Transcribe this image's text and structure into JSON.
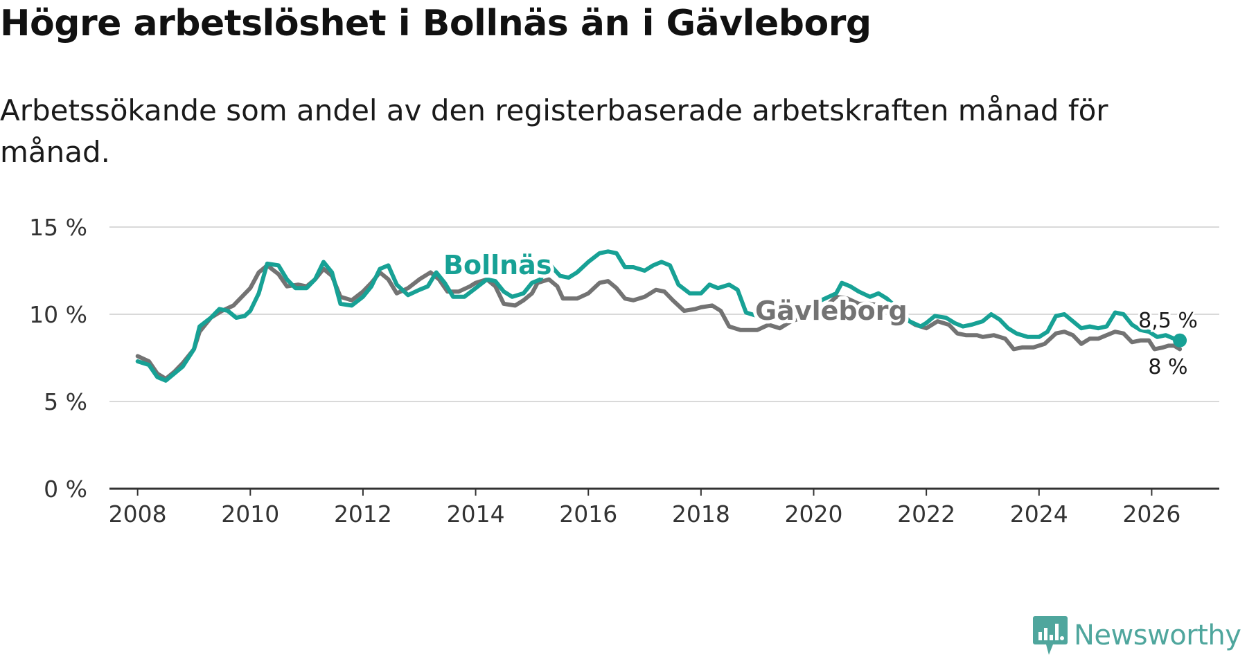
{
  "header": {
    "title": "Högre arbetslöshet i Bollnäs än i Gävleborg",
    "subtitle": "Arbetssökande som andel av den registerbaserade arbetskraften månad för månad."
  },
  "logo": {
    "text": "Newsworthy",
    "icon": "newsworthy-logo-icon",
    "color": "#4fa69d"
  },
  "chart_data": {
    "type": "line",
    "title": "Högre arbetslöshet i Bollnäs än i Gävleborg",
    "subtitle": "Arbetssökande som andel av den registerbaserade arbetskraften månad för månad.",
    "xlabel": "",
    "ylabel": "",
    "xlim": [
      2007.5,
      2027.2
    ],
    "ylim": [
      0,
      15
    ],
    "x_ticks": [
      2008,
      2010,
      2012,
      2014,
      2016,
      2018,
      2020,
      2022,
      2024,
      2026
    ],
    "x_tick_labels": [
      "2008",
      "2010",
      "2012",
      "2014",
      "2016",
      "2018",
      "2020",
      "2022",
      "2024",
      "2026"
    ],
    "y_ticks": [
      0,
      5,
      10,
      15
    ],
    "y_tick_labels": [
      "0 %",
      "5 %",
      "10 %",
      "15 %"
    ],
    "grid": true,
    "series": [
      {
        "name": "Gävleborg",
        "label": "Gävleborg",
        "color": "#737373",
        "end_label": "8 %",
        "points": [
          [
            2008.0,
            7.6
          ],
          [
            2008.2,
            7.3
          ],
          [
            2008.35,
            6.6
          ],
          [
            2008.5,
            6.3
          ],
          [
            2008.65,
            6.7
          ],
          [
            2008.8,
            7.2
          ],
          [
            2009.0,
            8.0
          ],
          [
            2009.1,
            9.0
          ],
          [
            2009.3,
            9.8
          ],
          [
            2009.5,
            10.2
          ],
          [
            2009.7,
            10.5
          ],
          [
            2009.85,
            11.0
          ],
          [
            2010.0,
            11.5
          ],
          [
            2010.15,
            12.4
          ],
          [
            2010.3,
            12.8
          ],
          [
            2010.5,
            12.3
          ],
          [
            2010.65,
            11.6
          ],
          [
            2010.85,
            11.7
          ],
          [
            2011.0,
            11.6
          ],
          [
            2011.15,
            12.0
          ],
          [
            2011.3,
            12.6
          ],
          [
            2011.45,
            12.2
          ],
          [
            2011.6,
            11.0
          ],
          [
            2011.8,
            10.8
          ],
          [
            2012.0,
            11.3
          ],
          [
            2012.15,
            11.8
          ],
          [
            2012.3,
            12.4
          ],
          [
            2012.45,
            12.0
          ],
          [
            2012.6,
            11.2
          ],
          [
            2012.8,
            11.5
          ],
          [
            2013.0,
            12.0
          ],
          [
            2013.2,
            12.4
          ],
          [
            2013.35,
            12.0
          ],
          [
            2013.5,
            11.3
          ],
          [
            2013.7,
            11.3
          ],
          [
            2013.9,
            11.6
          ],
          [
            2014.0,
            11.8
          ],
          [
            2014.2,
            12.0
          ],
          [
            2014.35,
            11.6
          ],
          [
            2014.5,
            10.6
          ],
          [
            2014.7,
            10.5
          ],
          [
            2014.85,
            10.8
          ],
          [
            2015.0,
            11.2
          ],
          [
            2015.1,
            11.8
          ],
          [
            2015.3,
            12.0
          ],
          [
            2015.45,
            11.6
          ],
          [
            2015.55,
            10.9
          ],
          [
            2015.8,
            10.9
          ],
          [
            2016.0,
            11.2
          ],
          [
            2016.2,
            11.8
          ],
          [
            2016.35,
            11.9
          ],
          [
            2016.5,
            11.5
          ],
          [
            2016.65,
            10.9
          ],
          [
            2016.8,
            10.8
          ],
          [
            2017.0,
            11.0
          ],
          [
            2017.2,
            11.4
          ],
          [
            2017.35,
            11.3
          ],
          [
            2017.5,
            10.8
          ],
          [
            2017.7,
            10.2
          ],
          [
            2017.9,
            10.3
          ],
          [
            2018.0,
            10.4
          ],
          [
            2018.2,
            10.5
          ],
          [
            2018.35,
            10.2
          ],
          [
            2018.5,
            9.3
          ],
          [
            2018.7,
            9.1
          ],
          [
            2018.9,
            9.1
          ],
          [
            2019.0,
            9.1
          ],
          [
            2019.2,
            9.4
          ],
          [
            2019.4,
            9.2
          ],
          [
            2019.6,
            9.6
          ],
          [
            2020.0,
            10.0
          ],
          [
            2020.2,
            10.4
          ],
          [
            2020.4,
            11.0
          ],
          [
            2020.6,
            10.9
          ],
          [
            2020.8,
            10.6
          ],
          [
            2021.0,
            10.6
          ],
          [
            2021.2,
            10.5
          ],
          [
            2021.4,
            10.2
          ],
          [
            2021.6,
            9.8
          ],
          [
            2021.8,
            9.4
          ],
          [
            2022.0,
            9.2
          ],
          [
            2022.2,
            9.6
          ],
          [
            2022.4,
            9.4
          ],
          [
            2022.55,
            8.9
          ],
          [
            2022.7,
            8.8
          ],
          [
            2022.9,
            8.8
          ],
          [
            2023.0,
            8.7
          ],
          [
            2023.2,
            8.8
          ],
          [
            2023.4,
            8.6
          ],
          [
            2023.55,
            8.0
          ],
          [
            2023.7,
            8.1
          ],
          [
            2023.9,
            8.1
          ],
          [
            2024.1,
            8.3
          ],
          [
            2024.3,
            8.9
          ],
          [
            2024.45,
            9.0
          ],
          [
            2024.6,
            8.8
          ],
          [
            2024.75,
            8.3
          ],
          [
            2024.9,
            8.6
          ],
          [
            2025.05,
            8.6
          ],
          [
            2025.2,
            8.8
          ],
          [
            2025.35,
            9.0
          ],
          [
            2025.5,
            8.9
          ],
          [
            2025.65,
            8.4
          ],
          [
            2025.8,
            8.5
          ],
          [
            2025.95,
            8.5
          ],
          [
            2026.05,
            8.0
          ],
          [
            2026.2,
            8.1
          ],
          [
            2026.3,
            8.2
          ],
          [
            2026.4,
            8.2
          ],
          [
            2026.5,
            8.0
          ]
        ]
      },
      {
        "name": "Bollnäs",
        "label": "Bollnäs",
        "color": "#17a195",
        "end_label": "8,5 %",
        "points": [
          [
            2008.0,
            7.3
          ],
          [
            2008.2,
            7.1
          ],
          [
            2008.35,
            6.4
          ],
          [
            2008.5,
            6.2
          ],
          [
            2008.65,
            6.6
          ],
          [
            2008.8,
            7.0
          ],
          [
            2009.0,
            8.0
          ],
          [
            2009.1,
            9.3
          ],
          [
            2009.3,
            9.8
          ],
          [
            2009.45,
            10.3
          ],
          [
            2009.6,
            10.2
          ],
          [
            2009.75,
            9.8
          ],
          [
            2009.9,
            9.9
          ],
          [
            2010.0,
            10.2
          ],
          [
            2010.15,
            11.2
          ],
          [
            2010.3,
            12.9
          ],
          [
            2010.5,
            12.8
          ],
          [
            2010.65,
            12.0
          ],
          [
            2010.8,
            11.5
          ],
          [
            2011.0,
            11.5
          ],
          [
            2011.15,
            12.0
          ],
          [
            2011.3,
            13.0
          ],
          [
            2011.45,
            12.4
          ],
          [
            2011.6,
            10.6
          ],
          [
            2011.8,
            10.5
          ],
          [
            2012.0,
            11.0
          ],
          [
            2012.15,
            11.6
          ],
          [
            2012.3,
            12.6
          ],
          [
            2012.45,
            12.8
          ],
          [
            2012.6,
            11.7
          ],
          [
            2012.8,
            11.1
          ],
          [
            2013.0,
            11.4
          ],
          [
            2013.15,
            11.6
          ],
          [
            2013.3,
            12.4
          ],
          [
            2013.45,
            11.8
          ],
          [
            2013.6,
            11.0
          ],
          [
            2013.8,
            11.0
          ],
          [
            2014.0,
            11.5
          ],
          [
            2014.2,
            12.0
          ],
          [
            2014.35,
            11.9
          ],
          [
            2014.5,
            11.3
          ],
          [
            2014.65,
            11.0
          ],
          [
            2014.85,
            11.2
          ],
          [
            2015.0,
            11.8
          ],
          [
            2015.15,
            12.0
          ],
          [
            2015.3,
            12.9
          ],
          [
            2015.5,
            12.2
          ],
          [
            2015.65,
            12.1
          ],
          [
            2015.8,
            12.4
          ],
          [
            2016.0,
            13.0
          ],
          [
            2016.2,
            13.5
          ],
          [
            2016.35,
            13.6
          ],
          [
            2016.5,
            13.5
          ],
          [
            2016.65,
            12.7
          ],
          [
            2016.8,
            12.7
          ],
          [
            2017.0,
            12.5
          ],
          [
            2017.15,
            12.8
          ],
          [
            2017.3,
            13.0
          ],
          [
            2017.45,
            12.8
          ],
          [
            2017.6,
            11.7
          ],
          [
            2017.8,
            11.2
          ],
          [
            2018.0,
            11.2
          ],
          [
            2018.15,
            11.7
          ],
          [
            2018.3,
            11.5
          ],
          [
            2018.5,
            11.7
          ],
          [
            2018.65,
            11.4
          ],
          [
            2018.8,
            10.1
          ],
          [
            2019.0,
            9.9
          ],
          [
            2019.2,
            9.9
          ],
          [
            2019.5,
            10.0
          ],
          [
            2019.8,
            10.3
          ],
          [
            2020.0,
            10.6
          ],
          [
            2020.2,
            10.9
          ],
          [
            2020.4,
            11.2
          ],
          [
            2020.5,
            11.8
          ],
          [
            2020.65,
            11.6
          ],
          [
            2020.8,
            11.3
          ],
          [
            2021.0,
            11.0
          ],
          [
            2021.15,
            11.2
          ],
          [
            2021.3,
            10.9
          ],
          [
            2021.5,
            10.3
          ],
          [
            2021.7,
            9.6
          ],
          [
            2021.9,
            9.3
          ],
          [
            2022.0,
            9.5
          ],
          [
            2022.15,
            9.9
          ],
          [
            2022.35,
            9.8
          ],
          [
            2022.5,
            9.5
          ],
          [
            2022.65,
            9.3
          ],
          [
            2022.8,
            9.4
          ],
          [
            2023.0,
            9.6
          ],
          [
            2023.15,
            10.0
          ],
          [
            2023.3,
            9.7
          ],
          [
            2023.45,
            9.2
          ],
          [
            2023.6,
            8.9
          ],
          [
            2023.8,
            8.7
          ],
          [
            2024.0,
            8.7
          ],
          [
            2024.15,
            9.0
          ],
          [
            2024.3,
            9.9
          ],
          [
            2024.45,
            10.0
          ],
          [
            2024.6,
            9.6
          ],
          [
            2024.75,
            9.2
          ],
          [
            2024.9,
            9.3
          ],
          [
            2025.05,
            9.2
          ],
          [
            2025.2,
            9.3
          ],
          [
            2025.35,
            10.1
          ],
          [
            2025.5,
            10.0
          ],
          [
            2025.65,
            9.4
          ],
          [
            2025.8,
            9.1
          ],
          [
            2025.95,
            9.0
          ],
          [
            2026.1,
            8.7
          ],
          [
            2026.25,
            8.8
          ],
          [
            2026.4,
            8.6
          ],
          [
            2026.5,
            8.5
          ]
        ]
      }
    ]
  }
}
